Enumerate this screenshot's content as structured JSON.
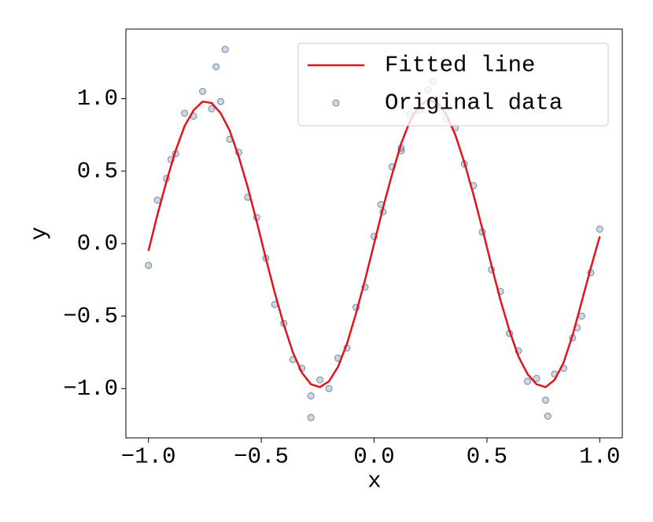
{
  "chart_data": {
    "type": "scatter",
    "xlabel": "x",
    "ylabel": "y",
    "xlim": [
      -1.1,
      1.1
    ],
    "ylim": [
      -1.34,
      1.48
    ],
    "xticks": [
      {
        "value": -1,
        "label": "−1.0"
      },
      {
        "value": -0.5,
        "label": "−0.5"
      },
      {
        "value": 0,
        "label": "0.0"
      },
      {
        "value": 0.5,
        "label": "0.5"
      },
      {
        "value": 1,
        "label": "1.0"
      }
    ],
    "yticks": [
      {
        "value": -1,
        "label": "−1.0"
      },
      {
        "value": -0.5,
        "label": "−0.5"
      },
      {
        "value": 0,
        "label": "0.0"
      },
      {
        "value": 0.5,
        "label": "0.5"
      },
      {
        "value": 1,
        "label": "1.0"
      }
    ],
    "legend": "upper right",
    "series": [
      {
        "name": "Fitted line",
        "kind": "line",
        "color": "#e0141e",
        "x": [
          -1.0,
          -0.96,
          -0.92,
          -0.88,
          -0.84,
          -0.8,
          -0.76,
          -0.72,
          -0.68,
          -0.64,
          -0.6,
          -0.56,
          -0.52,
          -0.48,
          -0.44,
          -0.4,
          -0.36,
          -0.32,
          -0.28,
          -0.24,
          -0.2,
          -0.16,
          -0.12,
          -0.08,
          -0.04,
          0.0,
          0.04,
          0.08,
          0.12,
          0.16,
          0.2,
          0.24,
          0.28,
          0.32,
          0.36,
          0.4,
          0.44,
          0.48,
          0.52,
          0.56,
          0.6,
          0.64,
          0.68,
          0.72,
          0.76,
          0.8,
          0.84,
          0.88,
          0.92,
          0.96,
          1.0
        ],
        "values": [
          -0.05,
          0.2,
          0.43,
          0.64,
          0.81,
          0.92,
          0.98,
          0.97,
          0.9,
          0.78,
          0.6,
          0.39,
          0.15,
          -0.1,
          -0.34,
          -0.56,
          -0.75,
          -0.89,
          -0.97,
          -0.99,
          -0.95,
          -0.85,
          -0.69,
          -0.48,
          -0.25,
          0.0,
          0.25,
          0.48,
          0.69,
          0.85,
          0.95,
          0.99,
          0.97,
          0.89,
          0.75,
          0.56,
          0.34,
          0.1,
          -0.15,
          -0.39,
          -0.6,
          -0.78,
          -0.9,
          -0.97,
          -0.99,
          -0.94,
          -0.82,
          -0.63,
          -0.4,
          -0.17,
          0.05
        ]
      },
      {
        "name": "Original data",
        "kind": "points",
        "color": "#6d8fae",
        "edgecolor": "#2c4a66",
        "x": [
          -1.0,
          -0.96,
          -0.92,
          -0.88,
          -0.84,
          -0.8,
          -0.76,
          -0.72,
          -0.68,
          -0.64,
          -0.6,
          -0.56,
          -0.52,
          -0.48,
          -0.44,
          -0.4,
          -0.36,
          -0.32,
          -0.28,
          -0.24,
          -0.2,
          -0.16,
          -0.12,
          -0.08,
          -0.04,
          0.0,
          0.04,
          0.08,
          0.12,
          0.16,
          0.2,
          0.24,
          0.28,
          0.32,
          0.36,
          0.4,
          0.44,
          0.48,
          0.52,
          0.56,
          0.6,
          0.64,
          0.68,
          0.72,
          0.76,
          0.8,
          0.84,
          0.88,
          0.92,
          0.96,
          1.0,
          -0.66,
          -0.7,
          0.12,
          0.26,
          -0.28,
          0.77,
          -0.9,
          0.9,
          0.03
        ],
        "values": [
          -0.15,
          0.3,
          0.45,
          0.62,
          0.9,
          0.88,
          1.05,
          0.93,
          0.98,
          0.72,
          0.63,
          0.32,
          0.18,
          -0.1,
          -0.42,
          -0.55,
          -0.8,
          -0.86,
          -1.05,
          -0.94,
          -1.0,
          -0.79,
          -0.72,
          -0.44,
          -0.3,
          0.05,
          0.22,
          0.53,
          0.64,
          0.89,
          0.92,
          1.06,
          0.95,
          0.86,
          0.8,
          0.55,
          0.4,
          0.08,
          -0.18,
          -0.33,
          -0.62,
          -0.74,
          -0.95,
          -0.93,
          -1.08,
          -0.9,
          -0.86,
          -0.65,
          -0.5,
          -0.2,
          0.1,
          1.34,
          1.22,
          0.66,
          1.12,
          -1.2,
          -1.19,
          0.58,
          -0.58,
          0.27
        ]
      }
    ]
  }
}
